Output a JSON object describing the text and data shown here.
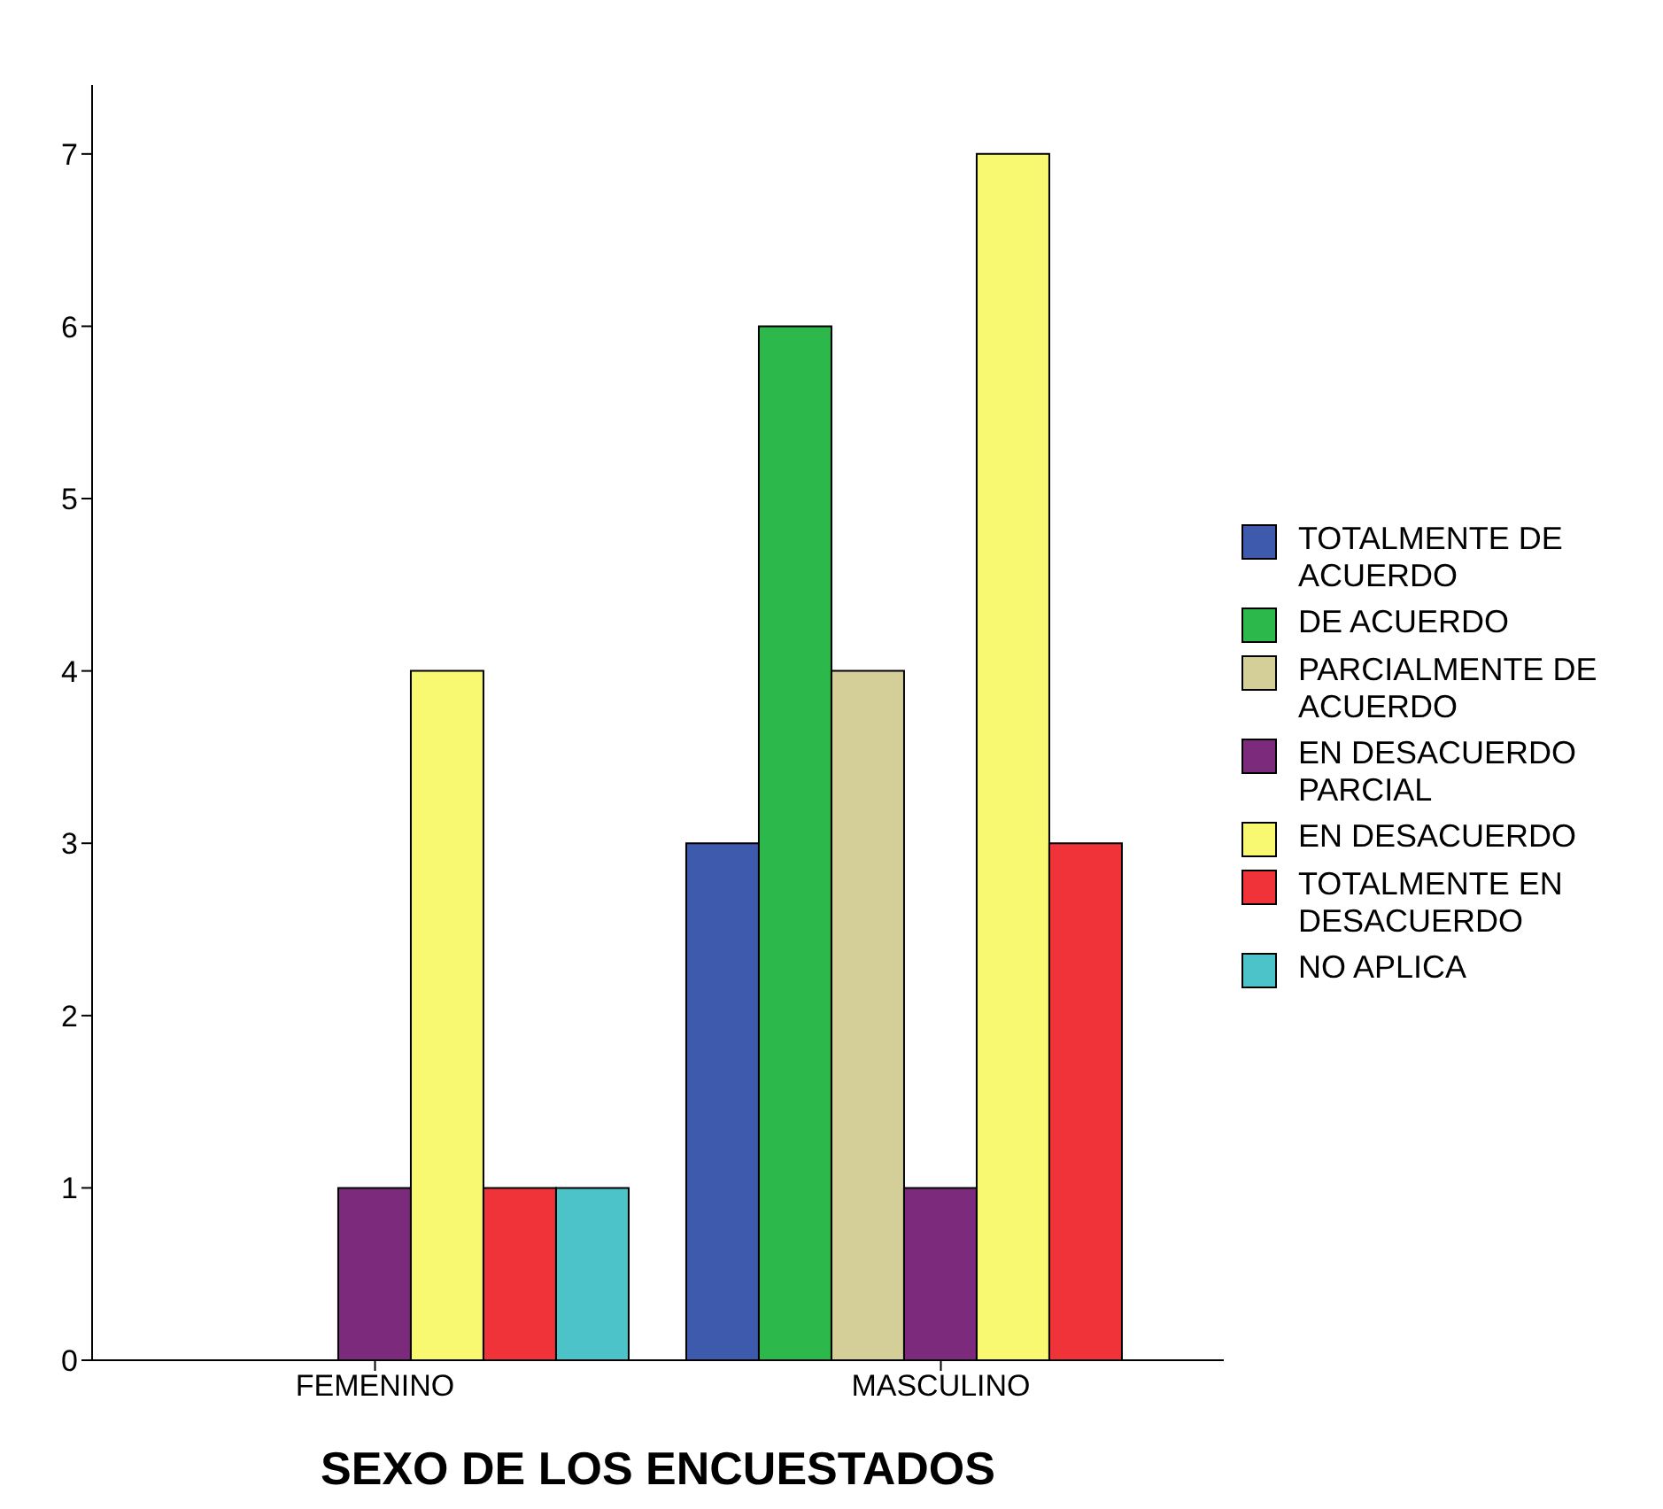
{
  "chart_data": {
    "type": "bar",
    "xlabel": "SEXO DE LOS ENCUESTADOS",
    "categories": [
      "FEMENINO",
      "MASCULINO"
    ],
    "series": [
      {
        "name": "TOTALMENTE DE ACUERDO",
        "color": "#3d5aad",
        "values": [
          null,
          3
        ]
      },
      {
        "name": "DE ACUERDO",
        "color": "#2db84b",
        "values": [
          null,
          6
        ]
      },
      {
        "name": "PARCIALMENTE DE ACUERDO",
        "color": "#d4cf98",
        "values": [
          null,
          4
        ]
      },
      {
        "name": "EN DESACUERDO PARCIAL",
        "color": "#7b2a7c",
        "values": [
          1,
          1
        ]
      },
      {
        "name": "EN DESACUERDO",
        "color": "#f9f871",
        "values": [
          4,
          7
        ]
      },
      {
        "name": "TOTALMENTE EN DESACUERDO",
        "color": "#ef3338",
        "values": [
          1,
          3
        ]
      },
      {
        "name": "NO APLICA",
        "color": "#4bc3c8",
        "values": [
          1,
          null
        ]
      }
    ],
    "ylim": [
      0,
      7.4
    ],
    "yticks": [
      0,
      1,
      2,
      3,
      4,
      5,
      6,
      7
    ],
    "grid": false,
    "legend": "right"
  }
}
